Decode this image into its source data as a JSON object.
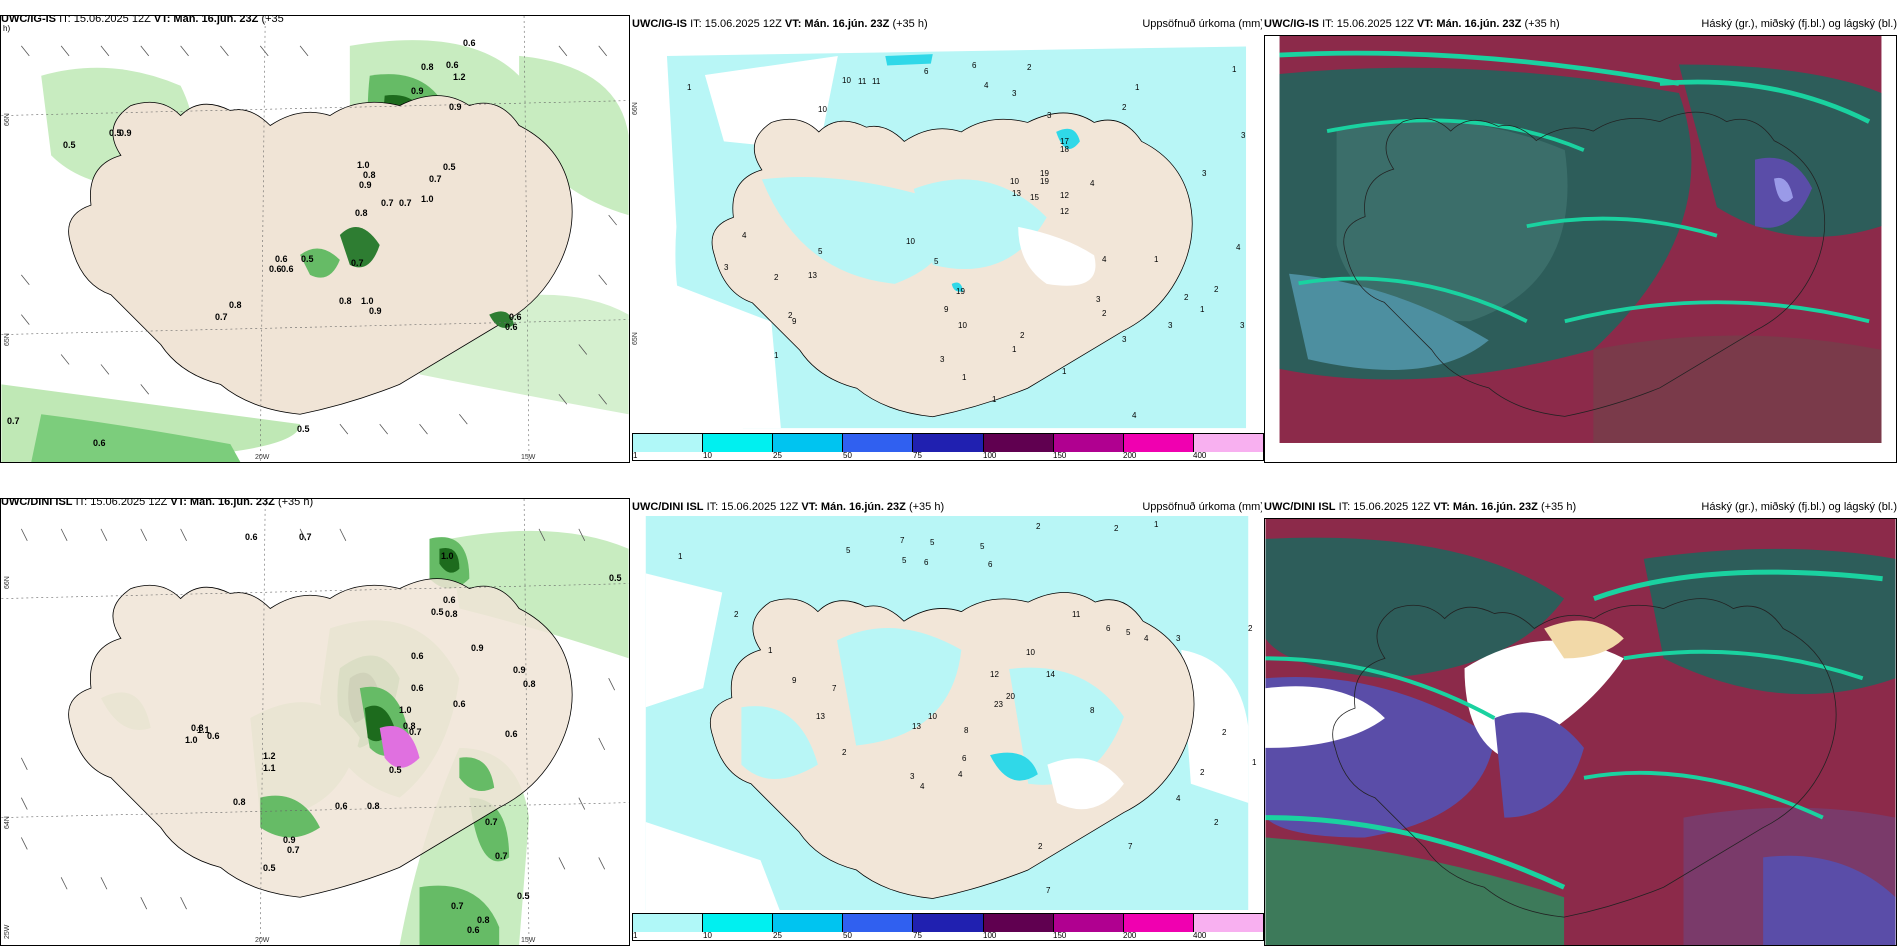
{
  "panels": {
    "top_left": {
      "title_model": "UWC/IG-IS",
      "title_it": "IT: 15.06.2025 12Z",
      "title_vt": "VT: Mán. 16.jún. 23Z",
      "title_lead": "(+35",
      "title_wrap": "h)"
    },
    "top_mid": {
      "title_model": "UWC/IG-IS",
      "title_it": "IT: 15.06.2025 12Z",
      "title_vt": "VT: Mán. 16.jún. 23Z",
      "title_lead": "(+35 h)",
      "title_right": "Uppsöfnuð úrkoma (mm)"
    },
    "top_right": {
      "title_model": "UWC/IG-IS",
      "title_it": "IT: 15.06.2025 12Z",
      "title_vt": "VT: Mán. 16.jún. 23Z",
      "title_lead": "(+35 h)",
      "title_right": "Háský (gr.), miðský (fj.bl.) og lágský (bl.)"
    },
    "bot_left": {
      "title_model": "UWC/DINI ISL",
      "title_it": "IT: 15.06.2025 12Z",
      "title_vt": "VT: Mán. 16.jún. 23Z",
      "title_lead": "(+35 h)"
    },
    "bot_mid": {
      "title_model": "UWC/DINI ISL",
      "title_it": "IT: 15.06.2025 12Z",
      "title_vt": "VT: Mán. 16.jún. 23Z",
      "title_lead": "(+35 h)",
      "title_right": "Uppsöfnuð úrkoma (mm)"
    },
    "bot_right": {
      "title_model": "UWC/DINI ISL",
      "title_it": "IT: 15.06.2025 12Z",
      "title_vt": "VT: Mán. 16.jún. 23Z",
      "title_lead": "(+35 h)",
      "title_right": "Háský (gr.), miðský (fj.bl.) og lágský (bl.)"
    }
  },
  "axes": {
    "lon_20": "20W",
    "lon_15": "15W",
    "lat_66": "66N",
    "lat_65": "65N",
    "lat_64": "64N",
    "lon_25": "25W"
  },
  "colorbar": {
    "ticks": [
      "1",
      "10",
      "25",
      "50",
      "75",
      "100",
      "150",
      "200",
      "400"
    ],
    "colors": [
      "#b0f8f8",
      "#00f0f0",
      "#00c4f0",
      "#3060f0",
      "#2020b0",
      "#600050",
      "#b00090",
      "#f000b0",
      "#f8b0f0"
    ]
  },
  "wind_labels_top": [
    "0.6",
    "0.8",
    "0.6",
    "1.2",
    "0.9",
    "0.9",
    "0.5",
    "0.9",
    "0.5",
    "1.0",
    "0.7",
    "0.5",
    "0.8",
    "1.0",
    "0.9",
    "0.7",
    "0.8",
    "0.7",
    "0.6",
    "0.5",
    "0.7",
    "0.6",
    "0.6",
    "0.8",
    "0.7",
    "0.8",
    "1.0",
    "0.9",
    "0.6",
    "0.6",
    "0.6",
    "0.7",
    "0.5"
  ],
  "wind_labels_bot": [
    "0.6",
    "0.7",
    "0.5",
    "1.0",
    "0.6",
    "0.8",
    "0.5",
    "0.9",
    "0.6",
    "0.6",
    "1.0",
    "0.8",
    "1.1",
    "1.2",
    "1.1",
    "0.9",
    "0.7",
    "0.8",
    "0.6",
    "0.5",
    "0.7",
    "0.5",
    "0.6",
    "0.6",
    "0.8",
    "0.7",
    "0.7",
    "0.5",
    "0.8",
    "0.6",
    "0.7",
    "0.9",
    "0.8",
    "0.6",
    "1.0",
    "0.8"
  ],
  "precip_top": [
    "1",
    "6",
    "6",
    "2",
    "1",
    "10",
    "11",
    "11",
    "10",
    "4",
    "3",
    "3",
    "2",
    "1",
    "3",
    "4",
    "17",
    "18",
    "19",
    "19",
    "15",
    "12",
    "13",
    "10",
    "12",
    "4",
    "3",
    "2",
    "5",
    "3",
    "2",
    "4",
    "3",
    "1",
    "2",
    "1",
    "3",
    "3",
    "1",
    "4",
    "3",
    "1",
    "10",
    "5",
    "19",
    "9",
    "9",
    "10",
    "13",
    "2",
    "2",
    "1",
    "4",
    "3",
    "2",
    "1",
    "1"
  ],
  "precip_bot": [
    "2",
    "1",
    "5",
    "7",
    "5",
    "5",
    "6",
    "5",
    "6",
    "2",
    "1",
    "2",
    "2",
    "1",
    "11",
    "6",
    "5",
    "4",
    "12",
    "10",
    "14",
    "23",
    "20",
    "13",
    "10",
    "8",
    "9",
    "13",
    "6",
    "7",
    "2",
    "3",
    "4",
    "4",
    "8",
    "3",
    "2",
    "2",
    "1",
    "2",
    "4",
    "7",
    "7",
    "2"
  ]
}
